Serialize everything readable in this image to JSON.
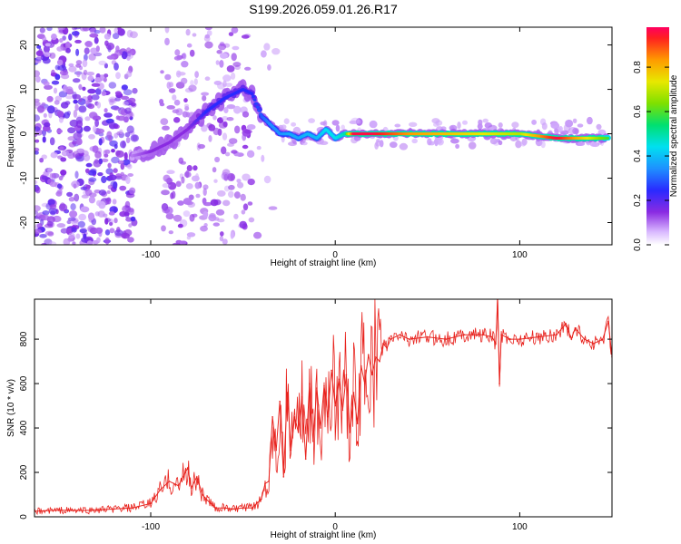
{
  "title": "S199.2026.059.01.26.R17",
  "chart_data": [
    {
      "type": "heatmap",
      "name": "spectrogram",
      "xlabel": "Height of straight line (km)",
      "ylabel": "Frequency (Hz)",
      "xlim": [
        -163,
        150
      ],
      "ylim": [
        -25,
        24
      ],
      "x_ticks": [
        -100,
        0,
        100
      ],
      "y_ticks": [
        -20,
        -10,
        0,
        10,
        20
      ],
      "colorbar": {
        "label": "Normalized spectral amplitude",
        "range": [
          0,
          0.98
        ],
        "ticks": [
          0.0,
          0.2,
          0.4,
          0.6,
          0.8
        ]
      },
      "ridge": {
        "x": [
          -110,
          -100,
          -90,
          -80,
          -70,
          -60,
          -50,
          -45,
          -40,
          -35,
          -30,
          -25,
          -20,
          -15,
          -10,
          -5,
          0,
          5,
          10,
          20,
          40,
          60,
          80,
          100,
          120,
          148
        ],
        "frequency": [
          -5,
          -4,
          -2,
          1,
          5,
          8,
          10,
          9,
          4,
          2,
          0,
          0,
          -1,
          0,
          -1,
          1,
          -1,
          0,
          0,
          0,
          0,
          0,
          0,
          0,
          -1,
          -1
        ],
        "amplitude": [
          0.1,
          0.15,
          0.15,
          0.15,
          0.25,
          0.25,
          0.25,
          0.25,
          0.3,
          0.35,
          0.35,
          0.38,
          0.38,
          0.4,
          0.4,
          0.45,
          0.45,
          0.5,
          0.98,
          0.98,
          0.85,
          0.8,
          0.75,
          0.7,
          0.98,
          0.6
        ]
      }
    },
    {
      "type": "line",
      "name": "snr",
      "xlabel": "Height of straight line (km)",
      "ylabel": "SNR (10 * v/v)",
      "xlim": [
        -163,
        150
      ],
      "ylim": [
        0,
        980
      ],
      "x_ticks": [
        -100,
        0,
        100
      ],
      "y_ticks": [
        0,
        200,
        400,
        600,
        800
      ],
      "color": "#e8231e",
      "series": [
        {
          "name": "SNR",
          "x": [
            -163,
            -150,
            -140,
            -130,
            -120,
            -110,
            -100,
            -95,
            -90,
            -85,
            -80,
            -78,
            -75,
            -72,
            -70,
            -65,
            -60,
            -55,
            -50,
            -45,
            -40,
            -38,
            -36,
            -34,
            -32,
            -30,
            -28,
            -26,
            -24,
            -22,
            -20,
            -18,
            -16,
            -14,
            -12,
            -10,
            -8,
            -6,
            -4,
            -2,
            0,
            2,
            4,
            6,
            8,
            10,
            12,
            14,
            16,
            18,
            20,
            22,
            24,
            26,
            28,
            30,
            35,
            40,
            50,
            60,
            70,
            80,
            85,
            87,
            88,
            89,
            90,
            95,
            100,
            110,
            120,
            125,
            128,
            130,
            135,
            140,
            145,
            148,
            150
          ],
          "y": [
            25,
            30,
            28,
            30,
            35,
            40,
            60,
            120,
            160,
            140,
            220,
            130,
            180,
            100,
            80,
            40,
            40,
            35,
            40,
            40,
            80,
            150,
            160,
            450,
            300,
            520,
            180,
            560,
            300,
            450,
            380,
            540,
            260,
            600,
            340,
            580,
            400,
            590,
            450,
            660,
            500,
            620,
            480,
            640,
            380,
            560,
            420,
            680,
            600,
            730,
            640,
            720,
            700,
            780,
            760,
            800,
            820,
            800,
            810,
            800,
            820,
            820,
            810,
            780,
            980,
            600,
            820,
            800,
            800,
            810,
            820,
            870,
            800,
            850,
            800,
            780,
            800,
            880,
            720
          ]
        }
      ]
    }
  ]
}
